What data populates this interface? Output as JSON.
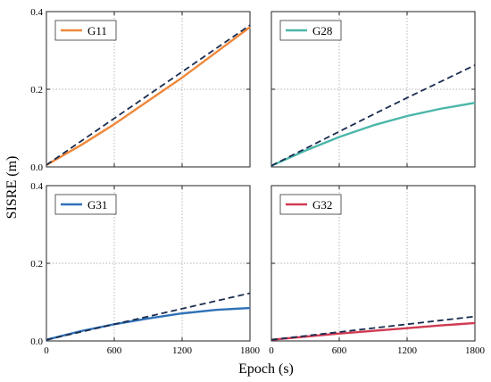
{
  "chart_data": {
    "type": "line",
    "ylabel": "SISRE (m)",
    "xlabel": "Epoch  (s)",
    "xlim": [
      0,
      1800
    ],
    "ylim": [
      0,
      0.4
    ],
    "xticks": [
      "0",
      "600",
      "1200",
      "1800"
    ],
    "yticks": [
      "0.0",
      "0.2",
      "0.4"
    ],
    "grid": "dotted",
    "panels": [
      {
        "legend": "G11",
        "color": "#f0883a",
        "x": [
          0,
          300,
          600,
          900,
          1200,
          1500,
          1800
        ],
        "y": [
          0.005,
          0.055,
          0.11,
          0.17,
          0.23,
          0.295,
          0.36
        ],
        "dashed_y": [
          0.005,
          0.065,
          0.125,
          0.185,
          0.245,
          0.305,
          0.365
        ]
      },
      {
        "legend": "G28",
        "color": "#4bb6a9",
        "x": [
          0,
          300,
          600,
          900,
          1200,
          1500,
          1800
        ],
        "y": [
          0.003,
          0.042,
          0.077,
          0.107,
          0.131,
          0.15,
          0.165
        ],
        "dashed_y": [
          0.003,
          0.047,
          0.091,
          0.135,
          0.178,
          0.22,
          0.262
        ]
      },
      {
        "legend": "G31",
        "color": "#2f72b8",
        "x": [
          0,
          300,
          600,
          900,
          1200,
          1500,
          1800
        ],
        "y": [
          0.003,
          0.025,
          0.043,
          0.058,
          0.071,
          0.08,
          0.085
        ],
        "dashed_y": [
          0.003,
          0.023,
          0.043,
          0.063,
          0.083,
          0.103,
          0.123
        ]
      },
      {
        "legend": "G32",
        "color": "#d13a52",
        "x": [
          0,
          300,
          600,
          900,
          1200,
          1500,
          1800
        ],
        "y": [
          0.003,
          0.011,
          0.019,
          0.026,
          0.033,
          0.04,
          0.046
        ],
        "dashed_y": [
          0.003,
          0.013,
          0.023,
          0.033,
          0.043,
          0.053,
          0.063
        ]
      }
    ],
    "dashed_color": "#1b2d50"
  }
}
